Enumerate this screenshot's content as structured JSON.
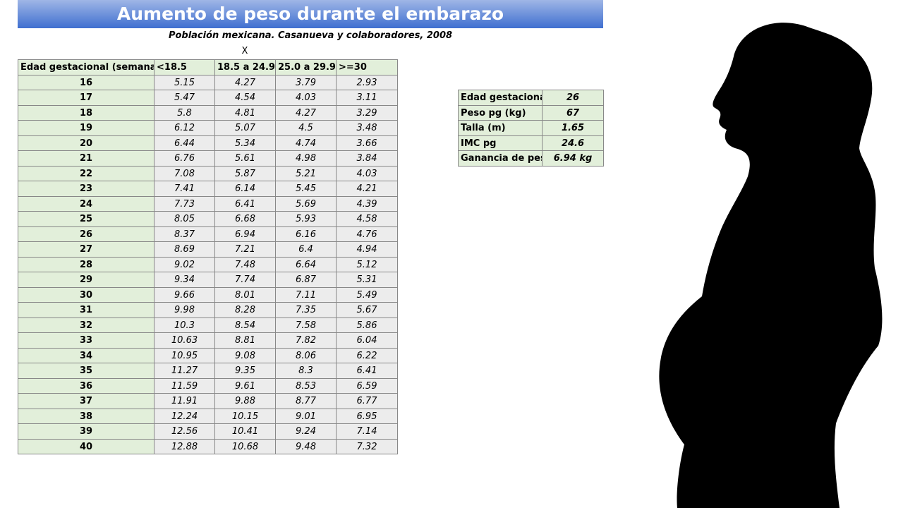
{
  "header": {
    "title": "Aumento de peso durante el embarazo",
    "subtitle": "Población mexicana. Casanueva y colaboradores, 2008",
    "marker": "X"
  },
  "table": {
    "columns": [
      "Edad gestacional (semanas)",
      "<18.5",
      "18.5 a 24.9",
      "25.0 a 29.9",
      ">=30"
    ],
    "rows": [
      [
        16,
        5.15,
        4.27,
        3.79,
        2.93
      ],
      [
        17,
        5.47,
        4.54,
        4.03,
        3.11
      ],
      [
        18,
        5.8,
        4.81,
        4.27,
        3.29
      ],
      [
        19,
        6.12,
        5.07,
        4.5,
        3.48
      ],
      [
        20,
        6.44,
        5.34,
        4.74,
        3.66
      ],
      [
        21,
        6.76,
        5.61,
        4.98,
        3.84
      ],
      [
        22,
        7.08,
        5.87,
        5.21,
        4.03
      ],
      [
        23,
        7.41,
        6.14,
        5.45,
        4.21
      ],
      [
        24,
        7.73,
        6.41,
        5.69,
        4.39
      ],
      [
        25,
        8.05,
        6.68,
        5.93,
        4.58
      ],
      [
        26,
        8.37,
        6.94,
        6.16,
        4.76
      ],
      [
        27,
        8.69,
        7.21,
        6.4,
        4.94
      ],
      [
        28,
        9.02,
        7.48,
        6.64,
        5.12
      ],
      [
        29,
        9.34,
        7.74,
        6.87,
        5.31
      ],
      [
        30,
        9.66,
        8.01,
        7.11,
        5.49
      ],
      [
        31,
        9.98,
        8.28,
        7.35,
        5.67
      ],
      [
        32,
        10.3,
        8.54,
        7.58,
        5.86
      ],
      [
        33,
        10.63,
        8.81,
        7.82,
        6.04
      ],
      [
        34,
        10.95,
        9.08,
        8.06,
        6.22
      ],
      [
        35,
        11.27,
        9.35,
        8.3,
        6.41
      ],
      [
        36,
        11.59,
        9.61,
        8.53,
        6.59
      ],
      [
        37,
        11.91,
        9.88,
        8.77,
        6.77
      ],
      [
        38,
        12.24,
        10.15,
        9.01,
        6.95
      ],
      [
        39,
        12.56,
        10.41,
        9.24,
        7.14
      ],
      [
        40,
        12.88,
        10.68,
        9.48,
        7.32
      ]
    ]
  },
  "summary": {
    "rows": [
      [
        "Edad gestacional",
        26
      ],
      [
        "Peso pg (kg)",
        67
      ],
      [
        "Talla (m)",
        1.65
      ],
      [
        "IMC pg",
        24.6
      ],
      [
        "Ganancia de peso",
        "6.94 kg"
      ]
    ]
  }
}
